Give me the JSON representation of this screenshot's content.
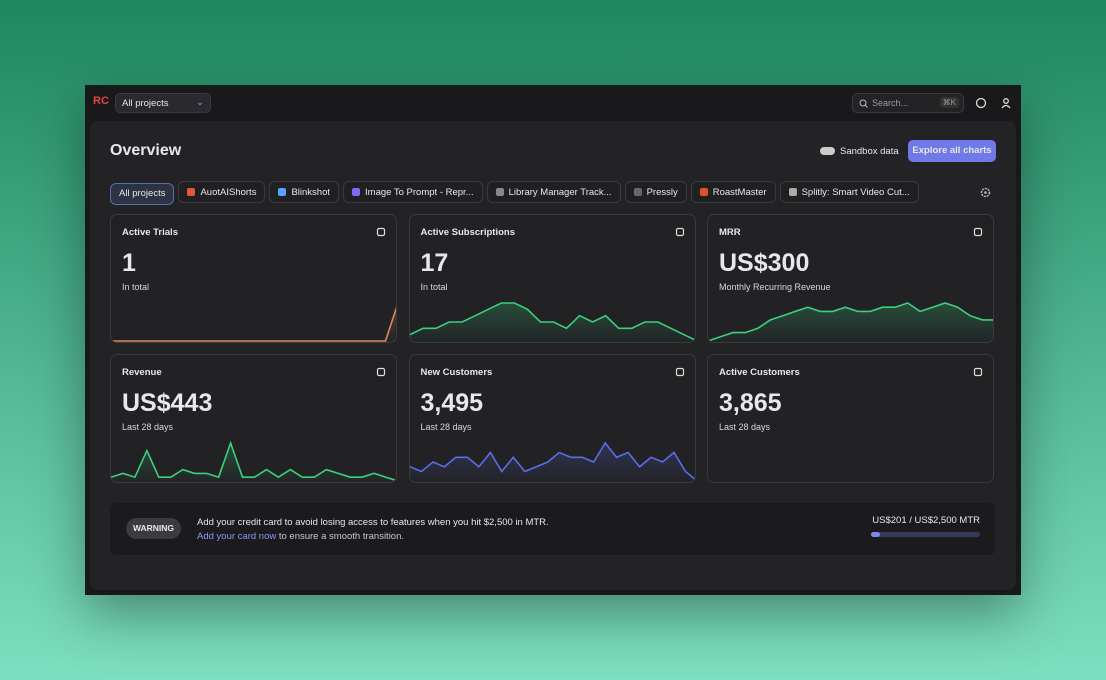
{
  "topbar": {
    "logo": "RC",
    "project_select": "All projects",
    "search_placeholder": "Search...",
    "search_shortcut": "⌘K"
  },
  "header": {
    "title": "Overview",
    "sandbox_label": "Sandbox data",
    "explore_button": "Explore all charts"
  },
  "tabs": [
    "All projects",
    "AuotAIShorts",
    "Blinkshot",
    "Image To Prompt - Repr...",
    "Library Manager Track...",
    "Pressly",
    "RoastMaster",
    "Splitly: Smart Video Cut..."
  ],
  "cards": [
    {
      "title": "Active Trials",
      "value": "1",
      "subtitle": "In total",
      "color": "#d98a5c",
      "sparkline": [
        0,
        0,
        0,
        0,
        0,
        0,
        0,
        0,
        0,
        0,
        0,
        0,
        0,
        0,
        0,
        0,
        0,
        0,
        0,
        0,
        0,
        0,
        0,
        1
      ]
    },
    {
      "title": "Active Subscriptions",
      "value": "17",
      "subtitle": "In total",
      "color": "#3bd07c",
      "sparkline": [
        15,
        16,
        16,
        17,
        17,
        18,
        19,
        20,
        20,
        19,
        17,
        17,
        16,
        18,
        17,
        18,
        16,
        16,
        17,
        17,
        16,
        15,
        14
      ]
    },
    {
      "title": "MRR",
      "value": "US$300",
      "subtitle": "Monthly Recurring Revenue",
      "color": "#3bd07c",
      "sparkline": [
        2,
        3,
        4,
        4,
        5,
        7,
        8,
        9,
        10,
        9,
        9,
        10,
        9,
        9,
        10,
        10,
        11,
        9,
        10,
        11,
        10,
        8,
        7,
        7
      ]
    },
    {
      "title": "Revenue",
      "value": "US$443",
      "subtitle": "Last 28 days",
      "color": "#3bd07c",
      "sparkline": [
        1,
        2,
        1,
        8,
        1,
        1,
        3,
        2,
        2,
        1,
        10,
        1,
        1,
        3,
        1,
        3,
        1,
        1,
        3,
        2,
        1,
        1,
        2,
        1,
        0
      ]
    },
    {
      "title": "New Customers",
      "value": "3,495",
      "subtitle": "Last 28 days",
      "color": "#5a6ee6",
      "sparkline": [
        3,
        2,
        4,
        3,
        5,
        5,
        3,
        6,
        2,
        5,
        2,
        3,
        4,
        6,
        5,
        5,
        4,
        8,
        5,
        6,
        3,
        5,
        4,
        6,
        2,
        0
      ]
    },
    {
      "title": "Active Customers",
      "value": "3,865",
      "subtitle": "Last 28 days",
      "color": "#3bd07c"
    }
  ],
  "warning": {
    "badge": "WARNING",
    "message": "Add your credit card to avoid losing access to features when you hit $2,500 in MTR.",
    "link": "Add your card now",
    "link_suffix": " to ensure a smooth transition.",
    "usage_label": "US$201 / US$2,500 MTR",
    "usage": {
      "used": 201,
      "limit": 2500
    }
  }
}
